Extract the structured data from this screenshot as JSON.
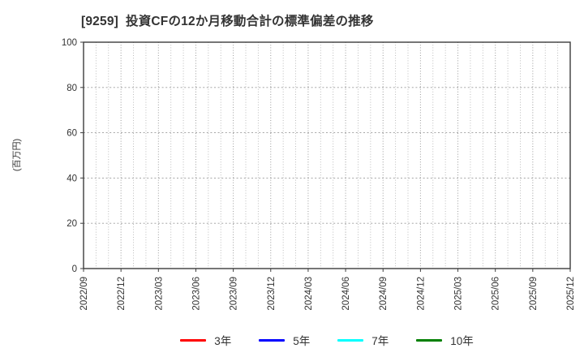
{
  "chart_data": {
    "type": "line",
    "title": "[9259]  投資CFの12か月移動合計の標準偏差の推移",
    "xlabel": "",
    "ylabel": "(百万円)",
    "ylim": [
      0,
      100
    ],
    "yticks": [
      0,
      20,
      40,
      60,
      80,
      100
    ],
    "x_tick_labels": [
      "2022/09",
      "2022/12",
      "2023/03",
      "2023/06",
      "2023/09",
      "2023/12",
      "2024/03",
      "2024/06",
      "2024/09",
      "2024/12",
      "2025/03",
      "2025/06",
      "2025/09",
      "2025/12"
    ],
    "x_tick_interval_months": 3,
    "x_total_months": 39,
    "grid": true,
    "legend_position": "bottom",
    "series": [
      {
        "name": "3年",
        "color": "#ff0000",
        "values": []
      },
      {
        "name": "5年",
        "color": "#0000ff",
        "values": []
      },
      {
        "name": "7年",
        "color": "#00ffff",
        "values": []
      },
      {
        "name": "10年",
        "color": "#008000",
        "values": []
      }
    ],
    "colors": {
      "axis_frame": "#3c3c3c",
      "grid_minor": "#b5b5b5",
      "grid_major": "#9a9a9a",
      "tick_text": "#333333"
    }
  }
}
